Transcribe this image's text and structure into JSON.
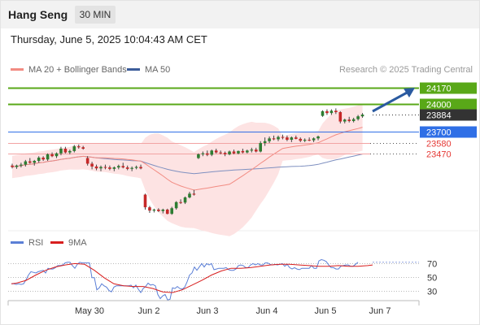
{
  "header": {
    "title": "Hang Seng",
    "timeframe": "30 MIN"
  },
  "datetime": "Thursday, June 5, 2025 10:04:43 AM CET",
  "legend": {
    "ma20_bb": {
      "label": "MA 20 + Bollinger Bands",
      "color": "#f28b82"
    },
    "ma50": {
      "label": "MA 50",
      "color": "#3c5d9a"
    }
  },
  "research_credit": "Research © 2025 Trading Central",
  "rsi_legend": {
    "rsi": {
      "label": "RSI",
      "color": "#5b7fd6"
    },
    "ma9": {
      "label": "9MA",
      "color": "#d81e1e"
    }
  },
  "colors": {
    "bull": "#2e7d32",
    "bear": "#c62828",
    "resistance": "#59a818",
    "pivot": "#2f6fe6",
    "support": "#e53935",
    "last": "#333333",
    "band_fill": "#fde3e3"
  },
  "chart_data": {
    "type": "candlestick",
    "title": "Hang Seng",
    "ylim": [
      22700,
      24290
    ],
    "x_ticks": [
      "May 30",
      "Jun 2",
      "Jun 3",
      "Jun 4",
      "Jun 5",
      "Jun 7"
    ],
    "levels": [
      {
        "name": "resistance",
        "value": 24170,
        "label": "24170"
      },
      {
        "name": "resistance",
        "value": 24000,
        "label": "24000"
      },
      {
        "name": "last",
        "value": 23884,
        "label": "23884"
      },
      {
        "name": "pivot",
        "value": 23700,
        "label": "23700"
      },
      {
        "name": "support",
        "value": 23580,
        "label": "23580"
      },
      {
        "name": "support",
        "value": 23470,
        "label": "23470"
      }
    ],
    "candles": [
      [
        23340,
        23360,
        23310,
        23325
      ],
      [
        23325,
        23350,
        23305,
        23340
      ],
      [
        23340,
        23370,
        23320,
        23350
      ],
      [
        23350,
        23400,
        23330,
        23385
      ],
      [
        23385,
        23420,
        23360,
        23370
      ],
      [
        23370,
        23400,
        23340,
        23390
      ],
      [
        23390,
        23440,
        23370,
        23425
      ],
      [
        23425,
        23440,
        23390,
        23405
      ],
      [
        23405,
        23470,
        23390,
        23460
      ],
      [
        23460,
        23480,
        23430,
        23440
      ],
      [
        23440,
        23480,
        23420,
        23470
      ],
      [
        23470,
        23540,
        23450,
        23520
      ],
      [
        23520,
        23540,
        23470,
        23480
      ],
      [
        23480,
        23510,
        23460,
        23495
      ],
      [
        23495,
        23560,
        23480,
        23545
      ],
      [
        23545,
        23565,
        23520,
        23535
      ],
      [
        23535,
        23550,
        23510,
        23520
      ],
      [
        23420,
        23440,
        23340,
        23360
      ],
      [
        23360,
        23380,
        23300,
        23330
      ],
      [
        23330,
        23350,
        23290,
        23310
      ],
      [
        23310,
        23340,
        23280,
        23325
      ],
      [
        23325,
        23350,
        23300,
        23320
      ],
      [
        23320,
        23340,
        23290,
        23305
      ],
      [
        23305,
        23330,
        23280,
        23320
      ],
      [
        23320,
        23350,
        23300,
        23335
      ],
      [
        23335,
        23370,
        23310,
        23320
      ],
      [
        23320,
        23340,
        23290,
        23305
      ],
      [
        23305,
        23330,
        23280,
        23315
      ],
      [
        23315,
        23340,
        23300,
        23325
      ],
      [
        23325,
        23350,
        23300,
        23310
      ],
      [
        23030,
        23040,
        22870,
        22895
      ],
      [
        22895,
        22910,
        22835,
        22860
      ],
      [
        22860,
        22880,
        22840,
        22870
      ],
      [
        22870,
        22885,
        22845,
        22855
      ],
      [
        22855,
        22880,
        22830,
        22870
      ],
      [
        22870,
        22880,
        22820,
        22825
      ],
      [
        22825,
        22900,
        22815,
        22885
      ],
      [
        22885,
        22960,
        22870,
        22950
      ],
      [
        22950,
        22980,
        22930,
        22945
      ],
      [
        22945,
        23010,
        22930,
        23000
      ],
      [
        23000,
        23060,
        22990,
        23040
      ],
      [
        23040,
        23080,
        23020,
        23030
      ],
      [
        23420,
        23470,
        23410,
        23460
      ],
      [
        23460,
        23490,
        23440,
        23470
      ],
      [
        23470,
        23500,
        23440,
        23455
      ],
      [
        23455,
        23510,
        23440,
        23500
      ],
      [
        23500,
        23520,
        23470,
        23480
      ],
      [
        23480,
        23500,
        23460,
        23475
      ],
      [
        23475,
        23490,
        23440,
        23460
      ],
      [
        23460,
        23500,
        23450,
        23490
      ],
      [
        23490,
        23510,
        23460,
        23470
      ],
      [
        23470,
        23500,
        23460,
        23495
      ],
      [
        23495,
        23520,
        23470,
        23480
      ],
      [
        23480,
        23510,
        23470,
        23500
      ],
      [
        23500,
        23530,
        23480,
        23510
      ],
      [
        23510,
        23530,
        23480,
        23490
      ],
      [
        23490,
        23600,
        23480,
        23580
      ],
      [
        23580,
        23640,
        23550,
        23600
      ],
      [
        23600,
        23650,
        23580,
        23630
      ],
      [
        23630,
        23660,
        23610,
        23620
      ],
      [
        23620,
        23660,
        23600,
        23645
      ],
      [
        23645,
        23670,
        23620,
        23640
      ],
      [
        23640,
        23660,
        23600,
        23615
      ],
      [
        23615,
        23650,
        23590,
        23640
      ],
      [
        23640,
        23660,
        23620,
        23625
      ],
      [
        23625,
        23640,
        23590,
        23605
      ],
      [
        23605,
        23630,
        23590,
        23615
      ],
      [
        23615,
        23640,
        23600,
        23610
      ],
      [
        23610,
        23640,
        23590,
        23630
      ],
      [
        23630,
        23660,
        23610,
        23650
      ],
      [
        23870,
        23930,
        23860,
        23920
      ],
      [
        23920,
        23940,
        23880,
        23900
      ],
      [
        23900,
        23940,
        23880,
        23925
      ],
      [
        23925,
        23950,
        23890,
        23910
      ],
      [
        23910,
        23920,
        23790,
        23810
      ],
      [
        23810,
        23840,
        23790,
        23830
      ],
      [
        23830,
        23860,
        23800,
        23815
      ],
      [
        23815,
        23850,
        23800,
        23835
      ],
      [
        23835,
        23880,
        23820,
        23865
      ],
      [
        23865,
        23900,
        23850,
        23884
      ]
    ],
    "rsi_ylim": [
      15,
      85
    ],
    "rsi_ticks": [
      70,
      50,
      30
    ],
    "rsi_x": [
      0,
      3,
      6,
      9,
      12,
      15,
      18,
      21,
      24,
      27,
      30,
      33,
      36,
      39,
      42,
      45,
      48,
      51,
      54,
      57,
      60,
      63,
      66,
      69,
      72,
      75,
      78,
      81,
      84,
      87,
      90,
      93,
      96,
      99,
      102,
      105,
      108,
      111,
      114,
      117,
      120,
      123,
      126,
      129,
      132,
      135,
      138,
      141,
      144,
      147,
      150,
      153,
      156,
      159,
      162,
      165,
      168,
      171,
      174,
      177,
      180,
      183,
      186,
      189,
      192,
      195,
      198,
      201,
      204,
      207,
      210,
      213,
      216,
      219,
      222,
      225,
      228,
      231,
      234,
      237,
      240,
      243,
      246,
      249,
      252,
      255,
      258,
      261,
      264,
      267,
      270,
      273,
      276,
      279,
      282,
      285,
      288,
      291,
      294,
      297,
      300,
      303,
      306,
      309,
      312,
      315,
      318,
      321,
      324,
      327,
      330,
      333,
      336,
      339,
      342,
      345,
      348,
      351,
      354,
      357,
      360,
      363,
      366,
      369,
      372,
      375,
      378,
      381,
      384,
      387,
      390,
      393,
      396,
      399,
      402,
      405,
      408,
      411,
      414,
      417,
      420,
      423,
      426,
      429,
      432,
      435,
      438,
      441,
      444
    ],
    "rsi_values": [
      40,
      40,
      39,
      40,
      39,
      40,
      46,
      53,
      58,
      57,
      56,
      58,
      59,
      60,
      56,
      63,
      62,
      62,
      64,
      67,
      67,
      68,
      71,
      72,
      72,
      67,
      63,
      69,
      72,
      71,
      71,
      71,
      71,
      49,
      49,
      31,
      34,
      40,
      37,
      35,
      30,
      28,
      35,
      37,
      37,
      37,
      37,
      37,
      37,
      38,
      34,
      38,
      32,
      27,
      33,
      36,
      41,
      38,
      39,
      37,
      24,
      18,
      22,
      24,
      16,
      17,
      34,
      33,
      36,
      33,
      32,
      35,
      43,
      53,
      56,
      65,
      60,
      65,
      70,
      65,
      70,
      68,
      70,
      61,
      62,
      63,
      63,
      63,
      64,
      61,
      60,
      60,
      62,
      67,
      68,
      67,
      64,
      64,
      68,
      70,
      68,
      70,
      68,
      68,
      71,
      71,
      69,
      68,
      69,
      68,
      69,
      70,
      66,
      69,
      64,
      62,
      64,
      62,
      61,
      63,
      63,
      63,
      63,
      67,
      63,
      63,
      74,
      76,
      75,
      73,
      68,
      64,
      64,
      62,
      62,
      66,
      67,
      68,
      68,
      66,
      66,
      69,
      72
    ],
    "rsi_ma_x": [
      0,
      6,
      18,
      30,
      42,
      54,
      66,
      78,
      90,
      102,
      114,
      126,
      138,
      150,
      162,
      174,
      186,
      198,
      210,
      222,
      234,
      246,
      258,
      270,
      282,
      294,
      306,
      318,
      330,
      342,
      354,
      366,
      378,
      390,
      402,
      414,
      426,
      438,
      444
    ],
    "rsi_ma_values": [
      40,
      41,
      45,
      53,
      60,
      65,
      68,
      70,
      69,
      60,
      49,
      40,
      37,
      36,
      36,
      33,
      28,
      27,
      31,
      38,
      45,
      53,
      59,
      63,
      63,
      64,
      66,
      68,
      69,
      69,
      68,
      67,
      66,
      66,
      67,
      66,
      66,
      67,
      68
    ]
  }
}
